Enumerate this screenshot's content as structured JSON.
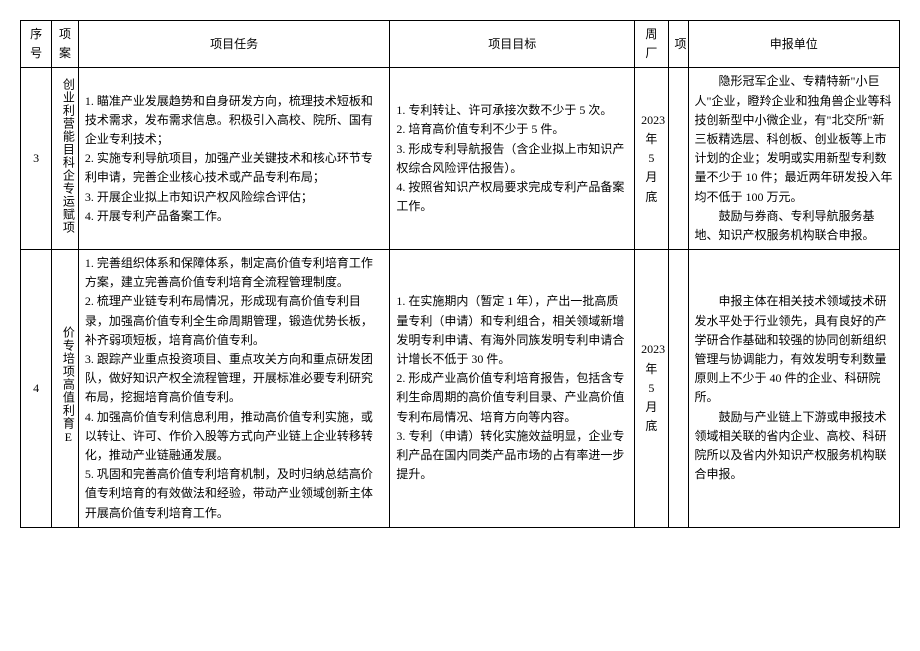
{
  "headers": {
    "seq": "序号",
    "project": "项案",
    "task": "项目任务",
    "goal": "项目目标",
    "period": "周厂",
    "count": "项",
    "applicant": "申报单位"
  },
  "rows": [
    {
      "seq": "3",
      "project": "创业利营能目科企专运赋项",
      "task_1": "1. 瞄准产业发展趋势和自身研发方向，梳理技术短板和技术需求，发布需求信息。积极引入高校、院所、国有企业专利技术；",
      "task_2": "2. 实施专利导航项目，加强产业关键技术和核心环节专利申请，完善企业核心技术或产品专利布局；",
      "task_3": "3. 开展企业拟上市知识产权风险综合评估；",
      "task_4": "4. 开展专利产品备案工作。",
      "goal_1": "1. 专利转让、许可承接次数不少于 5 次。",
      "goal_2": "2. 培育高价值专利不少于 5 件。",
      "goal_3": "3. 形成专利导航报告（含企业拟上市知识产权综合风险评估报告）。",
      "goal_4": "4. 按照省知识产权局要求完成专利产品备案工作。",
      "period": "2023 年 5 月底",
      "applicant_1": "隐形冠军企业、专精特新\"小巨人\"企业，瞪羚企业和独角兽企业等科技创新型中小微企业，有\"北交所\"新三板精选层、科创板、创业板等上市计划的企业；发明或实用新型专利数量不少于 10 件；最近两年研发投入年均不低于 100 万元。",
      "applicant_2": "鼓励与券商、专利导航服务基地、知识产权服务机构联合申报。"
    },
    {
      "seq": "4",
      "project": "价专培项高值利育E",
      "task_1": "1. 完善组织体系和保障体系，制定高价值专利培育工作方案，建立完善高价值专利培育全流程管理制度。",
      "task_2": "2. 梳理产业链专利布局情况，形成现有高价值专利目录，加强高价值专利全生命周期管理，锻造优势长板，补齐弱项短板，培育高价值专利。",
      "task_3": "3. 跟踪产业重点投资项目、重点攻关方向和重点研发团队，做好知识产权全流程管理，开展标准必要专利研究布局，挖掘培育高价值专利。",
      "task_4": "4. 加强高价值专利信息利用，推动高价值专利实施，或以转让、许可、作价入股等方式向产业链上企业转移转化，推动产业链融通发展。",
      "task_5": "5. 巩固和完善高价值专利培育机制，及时归纳总结高价值专利培育的有效做法和经验，带动产业领域创新主体开展高价值专利培育工作。",
      "goal_1": "1. 在实施期内（暂定 1 年），产出一批高质量专利（申请）和专利组合，相关领域新增发明专利申请、有海外同族发明专利申请合计增长不低于 30 件。",
      "goal_2": "2. 形成产业高价值专利培育报告，包括含专利生命周期的高价值专利目录、产业高价值专利布局情况、培育方向等内容。",
      "goal_3": "3. 专利（申请）转化实施效益明显，企业专利产品在国内同类产品市场的占有率进一步提升。",
      "period": "2023 年 5 月底",
      "applicant_1": "申报主体在相关技术领域技术研发水平处于行业领先，具有良好的产学研合作基础和较强的协同创新组织管理与协调能力，有效发明专利数量原则上不少于 40 件的企业、科研院所。",
      "applicant_2": "鼓励与产业链上下游或申报技术领域相关联的省内企业、高校、科研院所以及省内外知识产权服务机构联合申报。"
    }
  ]
}
